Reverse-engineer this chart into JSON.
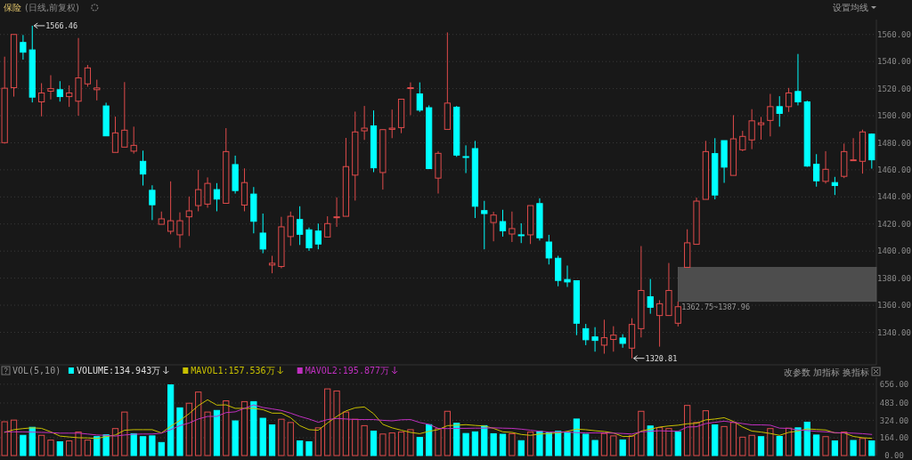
{
  "chart_data": [
    {
      "type": "candlestick",
      "title": "保险",
      "subtitle": "(日线,前复权)",
      "categories": [
        null,
        null,
        null,
        null,
        null,
        null,
        null,
        null,
        null,
        null,
        null,
        null,
        null,
        null,
        null,
        null,
        null,
        null,
        null,
        null,
        null,
        null,
        null,
        null,
        null,
        null,
        null,
        null,
        null,
        null,
        null,
        null,
        null,
        null,
        null,
        null,
        null,
        null,
        null,
        null,
        null,
        null,
        null,
        null,
        null,
        null,
        null,
        null,
        null,
        null,
        null,
        null,
        null,
        null,
        null,
        null,
        null,
        null,
        null,
        null,
        null,
        null,
        null,
        null,
        null,
        null,
        null,
        null,
        null,
        null,
        null,
        null,
        null,
        null,
        null,
        null,
        null,
        null,
        null,
        null,
        null,
        null,
        null,
        null,
        null,
        null,
        null,
        null,
        null,
        null,
        null,
        null,
        null,
        null,
        null
      ],
      "ohlc": [
        [
          1480.1,
          1543.6,
          1479.4,
          1520.3
        ],
        [
          1520.7,
          1560,
          1514.1,
          1560
        ],
        [
          1554.1,
          1559.6,
          1541.4,
          1546.9
        ],
        [
          1548.6,
          1566.46,
          1509.8,
          1513.7
        ],
        [
          1510.2,
          1524,
          1499.5,
          1516.8
        ],
        [
          1518.1,
          1529.9,
          1512,
          1520
        ],
        [
          1519.2,
          1525.5,
          1510.4,
          1514.1
        ],
        [
          1514.1,
          1522.4,
          1506.5,
          1516.8
        ],
        [
          1510.7,
          1557.4,
          1500,
          1527.9
        ],
        [
          1523.5,
          1537.5,
          1521.4,
          1535.3
        ],
        [
          1519.2,
          1526.6,
          1511.3,
          1520.5
        ],
        [
          1507.2,
          1509.6,
          1485.1,
          1485.1
        ],
        [
          1472.9,
          1499.3,
          1472.9,
          1487.3
        ],
        [
          1476.8,
          1524.8,
          1476.8,
          1489.3
        ],
        [
          1473.8,
          1491.9,
          1472,
          1478.1
        ],
        [
          1466.3,
          1474.2,
          1448.4,
          1456.9
        ],
        [
          1444.9,
          1448.6,
          1422.9,
          1434.2
        ],
        [
          1419.8,
          1429.2,
          1419.8,
          1423.8
        ],
        [
          1414.6,
          1451.5,
          1412.4,
          1422.4
        ],
        [
          1412,
          1428.6,
          1402.4,
          1422.4
        ],
        [
          1425.3,
          1440.3,
          1411.1,
          1429.7
        ],
        [
          1433.6,
          1460,
          1429.4,
          1445.4
        ],
        [
          1434.7,
          1454.4,
          1432,
          1450
        ],
        [
          1445.4,
          1450.2,
          1429.4,
          1438.4
        ],
        [
          1435.3,
          1490.8,
          1435.3,
          1473.5
        ],
        [
          1463.9,
          1470.5,
          1442.5,
          1444.7
        ],
        [
          1434,
          1461.1,
          1429.4,
          1450.6
        ],
        [
          1442.1,
          1447.3,
          1413.1,
          1422
        ],
        [
          1413.3,
          1427.7,
          1398.4,
          1401.5
        ],
        [
          1389.7,
          1396.5,
          1383.6,
          1391
        ],
        [
          1388.6,
          1425.3,
          1387.3,
          1417.9
        ],
        [
          1410.7,
          1429.2,
          1403.9,
          1425.7
        ],
        [
          1423.3,
          1433.1,
          1404.5,
          1412.4
        ],
        [
          1415.7,
          1417.4,
          1400.2,
          1402.4
        ],
        [
          1414.8,
          1420.3,
          1401.3,
          1405.2
        ],
        [
          1410.4,
          1425.7,
          1410.4,
          1420.3
        ],
        [
          1424.8,
          1439.7,
          1417.9,
          1425.3
        ],
        [
          1425.7,
          1483.6,
          1425.7,
          1462.4
        ],
        [
          1456.1,
          1503,
          1437.3,
          1488
        ],
        [
          1488.8,
          1507.2,
          1482.1,
          1490.8
        ],
        [
          1492.5,
          1503.9,
          1458.3,
          1461.5
        ],
        [
          1458,
          1489.7,
          1445.4,
          1489.7
        ],
        [
          1489.9,
          1504.5,
          1483.4,
          1490.8
        ],
        [
          1491.2,
          1512.2,
          1487.1,
          1512.2
        ],
        [
          1520.5,
          1524.6,
          1500.4,
          1520.7
        ],
        [
          1516.1,
          1524.6,
          1502.8,
          1504.1
        ],
        [
          1505.9,
          1507.6,
          1460.9,
          1460.9
        ],
        [
          1453.9,
          1473.8,
          1442.5,
          1472.2
        ],
        [
          1489.9,
          1561.5,
          1489.9,
          1509.3
        ],
        [
          1506.3,
          1507.2,
          1469.6,
          1470.9
        ],
        [
          1469.8,
          1478.1,
          1457.6,
          1469.6
        ],
        [
          1475.7,
          1481.4,
          1424.4,
          1433.1
        ],
        [
          1429.9,
          1437.1,
          1401.3,
          1427.7
        ],
        [
          1421.1,
          1429,
          1407.2,
          1426.6
        ],
        [
          1421.8,
          1430.5,
          1410.7,
          1415
        ],
        [
          1412.6,
          1429.2,
          1406.7,
          1416.6
        ],
        [
          1412,
          1420.5,
          1405.9,
          1411.7
        ],
        [
          1412,
          1433.6,
          1405.2,
          1433.6
        ],
        [
          1435.1,
          1439,
          1407.8,
          1409.8
        ],
        [
          1406.7,
          1412,
          1390.1,
          1394.9
        ],
        [
          1394.7,
          1396.5,
          1374,
          1378.3
        ],
        [
          1379,
          1389.3,
          1373.5,
          1377.2
        ],
        [
          1378.1,
          1378.1,
          1337.9,
          1346.7
        ],
        [
          1342.7,
          1346.2,
          1330.5,
          1334.5
        ],
        [
          1336.6,
          1343.8,
          1325.7,
          1334
        ],
        [
          1330.5,
          1349.3,
          1324.2,
          1336
        ],
        [
          1334.7,
          1344.5,
          1325.7,
          1337.9
        ],
        [
          1335.8,
          1338.6,
          1328.6,
          1331.8
        ],
        [
          1328.3,
          1350.4,
          1320.81,
          1345.8
        ],
        [
          1342.7,
          1403.7,
          1336.2,
          1370.9
        ],
        [
          1366.3,
          1379.4,
          1353.7,
          1358.5
        ],
        [
          1352.4,
          1363.7,
          1329.4,
          1361.1
        ],
        [
          1352.4,
          1391.2,
          1352.4,
          1370.9
        ],
        [
          1346.7,
          1362.75,
          1344.3,
          1358.9
        ],
        [
          1388,
          1416.1,
          1387.96,
          1406.1
        ],
        [
          1405,
          1439.5,
          1405,
          1436.9
        ],
        [
          1438.2,
          1481.4,
          1438.2,
          1473.5
        ],
        [
          1472,
          1483.4,
          1438.2,
          1441.4
        ],
        [
          1481.6,
          1481.6,
          1450.4,
          1462
        ],
        [
          1455.9,
          1500.4,
          1455.9,
          1482.9
        ],
        [
          1474.8,
          1488.8,
          1473.8,
          1484.7
        ],
        [
          1482.1,
          1504.8,
          1475.3,
          1496.2
        ],
        [
          1493.4,
          1499.1,
          1482.3,
          1494.7
        ],
        [
          1496.5,
          1516.1,
          1484.7,
          1506.7
        ],
        [
          1506.7,
          1514.4,
          1491.9,
          1501.7
        ],
        [
          1506.7,
          1520.5,
          1502.8,
          1516.8
        ],
        [
          1517.9,
          1545.6,
          1507.6,
          1510.2
        ],
        [
          1510.2,
          1511.1,
          1462.2,
          1462.8
        ],
        [
          1464.1,
          1471.6,
          1447.6,
          1451.9
        ],
        [
          1451.5,
          1473.8,
          1449.9,
          1460.4
        ],
        [
          1450.6,
          1454.8,
          1441.4,
          1448.4
        ],
        [
          1455.2,
          1479.4,
          1453.9,
          1473.5
        ],
        [
          1466.8,
          1483.4,
          1466.8,
          1467.4
        ],
        [
          1466.3,
          1489.7,
          1457.2,
          1488
        ],
        [
          1486.4,
          1486.9,
          1460.9,
          1467.4
        ]
      ],
      "ylim": [
        1316,
        1571
      ],
      "yticks": [
        {
          "value": 1340,
          "label": "1340.00"
        },
        {
          "value": 1360,
          "label": "1360.00"
        },
        {
          "value": 1380,
          "label": "1380.00"
        },
        {
          "value": 1400,
          "label": "1400.00"
        },
        {
          "value": 1420,
          "label": "1420.00"
        },
        {
          "value": 1440,
          "label": "1440.00"
        },
        {
          "value": 1460,
          "label": "1460.00"
        },
        {
          "value": 1480,
          "label": "1480.00"
        },
        {
          "value": 1500,
          "label": "1500.00"
        },
        {
          "value": 1520,
          "label": "1520.00"
        },
        {
          "value": 1540,
          "label": "1540.00"
        },
        {
          "value": 1560,
          "label": "1560.00"
        }
      ],
      "grid": "y",
      "tick_labels": "y",
      "annotations": [
        "1566.46",
        "1320.81",
        "设置均线"
      ],
      "bands": [
        {
          "axis": "y",
          "from": 1362.75,
          "to": 1387.96,
          "label": "1362.75~1387.96",
          "color": "#4d4d4d"
        }
      ]
    },
    {
      "type": "bar",
      "title": "VOL(5,10)",
      "categories": [
        null,
        null,
        null,
        null,
        null,
        null,
        null,
        null,
        null,
        null,
        null,
        null,
        null,
        null,
        null,
        null,
        null,
        null,
        null,
        null,
        null,
        null,
        null,
        null,
        null,
        null,
        null,
        null,
        null,
        null,
        null,
        null,
        null,
        null,
        null,
        null,
        null,
        null,
        null,
        null,
        null,
        null,
        null,
        null,
        null,
        null,
        null,
        null,
        null,
        null,
        null,
        null,
        null,
        null,
        null,
        null,
        null,
        null,
        null,
        null,
        null,
        null,
        null,
        null,
        null,
        null,
        null,
        null,
        null,
        null,
        null,
        null,
        null,
        null,
        null,
        null,
        null,
        null,
        null,
        null,
        null,
        null,
        null,
        null,
        null,
        null,
        null,
        null,
        null,
        null,
        null,
        null,
        null,
        null,
        null
      ],
      "series": [
        {
          "name": "VOLUME:134.943万",
          "values": [
            311,
            326,
            186,
            260,
            186,
            142,
            127,
            135,
            216,
            142,
            174,
            191,
            248,
            400,
            201,
            174,
            181,
            120,
            650,
            439,
            481,
            584,
            400,
            415,
            503,
            319,
            496,
            496,
            343,
            282,
            334,
            304,
            135,
            127,
            255,
            613,
            594,
            400,
            334,
            275,
            225,
            198,
            208,
            216,
            238,
            167,
            284,
            248,
            407,
            297,
            203,
            218,
            275,
            201,
            196,
            201,
            137,
            216,
            223,
            208,
            223,
            211,
            336,
            196,
            139,
            203,
            181,
            144,
            181,
            407,
            272,
            257,
            248,
            218,
            461,
            304,
            412,
            282,
            267,
            304,
            169,
            186,
            174,
            248,
            176,
            252,
            255,
            307,
            189,
            174,
            135,
            216,
            139,
            157,
            135
          ],
          "colors": [
            "#e04b4b",
            "#e04b4b",
            "#00ffff",
            "#00ffff",
            "#e04b4b",
            "#e04b4b",
            "#00ffff",
            "#e04b4b",
            "#e04b4b",
            "#e04b4b",
            "#00ffff",
            "#00ffff",
            "#e04b4b",
            "#e04b4b",
            "#00ffff",
            "#00ffff",
            "#00ffff",
            "#00ffff",
            "#00ffff",
            "#00ffff",
            "#e04b4b",
            "#e04b4b",
            "#e04b4b",
            "#00ffff",
            "#e04b4b",
            "#00ffff",
            "#e04b4b",
            "#00ffff",
            "#00ffff",
            "#00ffff",
            "#e04b4b",
            "#e04b4b",
            "#00ffff",
            "#00ffff",
            "#e04b4b",
            "#e04b4b",
            "#e04b4b",
            "#e04b4b",
            "#e04b4b",
            "#e04b4b",
            "#00ffff",
            "#e04b4b",
            "#e04b4b",
            "#e04b4b",
            "#e04b4b",
            "#00ffff",
            "#00ffff",
            "#e04b4b",
            "#e04b4b",
            "#00ffff",
            "#00ffff",
            "#00ffff",
            "#00ffff",
            "#00ffff",
            "#00ffff",
            "#e04b4b",
            "#00ffff",
            "#e04b4b",
            "#00ffff",
            "#00ffff",
            "#00ffff",
            "#00ffff",
            "#00ffff",
            "#00ffff",
            "#00ffff",
            "#e04b4b",
            "#e04b4b",
            "#00ffff",
            "#e04b4b",
            "#e04b4b",
            "#00ffff",
            "#e04b4b",
            "#e04b4b",
            "#00ffff",
            "#e04b4b",
            "#e04b4b",
            "#e04b4b",
            "#00ffff",
            "#e04b4b",
            "#e04b4b",
            "#e04b4b",
            "#e04b4b",
            "#00ffff",
            "#e04b4b",
            "#00ffff",
            "#e04b4b",
            "#00ffff",
            "#00ffff",
            "#00ffff",
            "#e04b4b",
            "#00ffff",
            "#e04b4b",
            "#00ffff",
            "#e04b4b",
            "#00ffff"
          ]
        },
        {
          "type": "line",
          "name": "MAVOL1:157.536万",
          "color": "#c8c000",
          "values": [
            213,
            238,
            248,
            255,
            250,
            218,
            179,
            171,
            164,
            162,
            157,
            174,
            189,
            233,
            238,
            238,
            238,
            208,
            269,
            323,
            385,
            459,
            513,
            464,
            466,
            434,
            434,
            434,
            422,
            390,
            390,
            348,
            275,
            238,
            233,
            299,
            360,
            410,
            439,
            447,
            385,
            287,
            255,
            233,
            213,
            201,
            223,
            238,
            275,
            279,
            284,
            277,
            272,
            250,
            218,
            213,
            194,
            186,
            198,
            203,
            208,
            223,
            243,
            238,
            228,
            221,
            208,
            176,
            176,
            225,
            243,
            262,
            272,
            279,
            292,
            297,
            328,
            336,
            348,
            314,
            262,
            225,
            216,
            203,
            186,
            213,
            225,
            245,
            240,
            235,
            208,
            208,
            176,
            164,
            158
          ]
        },
        {
          "type": "line",
          "name": "MAVOL2:195.877万",
          "color": "#c030c0",
          "values": [
            218,
            218,
            218,
            216,
            213,
            211,
            206,
            206,
            206,
            198,
            189,
            186,
            179,
            189,
            196,
            198,
            198,
            206,
            238,
            275,
            299,
            336,
            360,
            360,
            395,
            402,
            434,
            466,
            442,
            429,
            415,
            390,
            360,
            336,
            306,
            331,
            341,
            336,
            331,
            331,
            331,
            324,
            319,
            329,
            331,
            304,
            287,
            250,
            248,
            250,
            250,
            252,
            252,
            255,
            252,
            250,
            243,
            233,
            223,
            216,
            216,
            216,
            211,
            208,
            208,
            208,
            206,
            203,
            198,
            218,
            223,
            228,
            225,
            223,
            262,
            265,
            294,
            306,
            316,
            306,
            294,
            282,
            282,
            279,
            252,
            250,
            235,
            230,
            223,
            218,
            211,
            208,
            206,
            201,
            194
          ]
        }
      ],
      "ylim": [
        0,
        720
      ],
      "yticks": [
        {
          "value": 0,
          "label": "0.00"
        },
        {
          "value": 164,
          "label": "164.00"
        },
        {
          "value": 324,
          "label": "324.00"
        },
        {
          "value": 483,
          "label": "483.00"
        },
        {
          "value": 656,
          "label": "656.00"
        }
      ],
      "grid": "y",
      "tick_labels": "y",
      "legend": "top left",
      "annotations": [
        "改参数",
        "加指标",
        "换指标"
      ]
    }
  ]
}
